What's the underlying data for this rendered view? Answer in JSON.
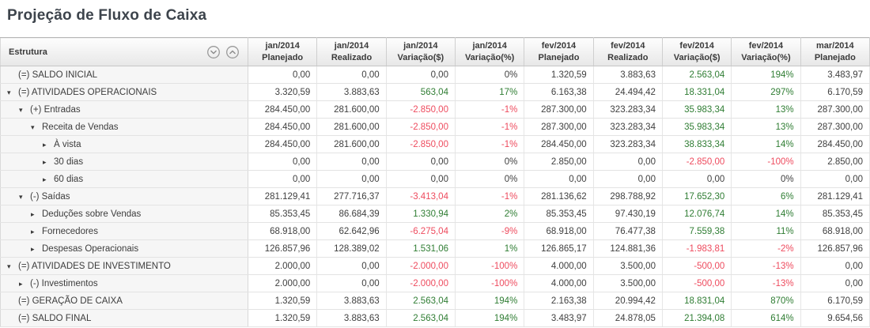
{
  "page": {
    "title": "Projeção de Fluxo de Caixa"
  },
  "colors": {
    "title": "#3d444c",
    "positive": "#2f7d33",
    "negative": "#ee4b5e",
    "neutral": "#3f3f3f",
    "structure_bg": "#f6f6f6",
    "header_gradient_top": "#fdfdfd",
    "header_gradient_bottom": "#e7e7e7"
  },
  "table": {
    "structure_header": "Estrutura",
    "header_icons": [
      {
        "name": "collapse-all-icon",
        "glyph": "chevron-down-circle"
      },
      {
        "name": "expand-all-icon",
        "glyph": "chevron-up-circle"
      }
    ],
    "columns": [
      {
        "period": "jan/2014",
        "metric": "Planejado"
      },
      {
        "period": "jan/2014",
        "metric": "Realizado"
      },
      {
        "period": "jan/2014",
        "metric": "Variação($)"
      },
      {
        "period": "jan/2014",
        "metric": "Variação(%)"
      },
      {
        "period": "fev/2014",
        "metric": "Planejado"
      },
      {
        "period": "fev/2014",
        "metric": "Realizado"
      },
      {
        "period": "fev/2014",
        "metric": "Variação($)"
      },
      {
        "period": "fev/2014",
        "metric": "Variação(%)"
      },
      {
        "period": "mar/2014",
        "metric": "Planejado"
      }
    ],
    "rows": [
      {
        "label": "(=) SALDO INICIAL",
        "indent": 0,
        "arrow": "none",
        "cells": [
          [
            "0,00",
            "k"
          ],
          [
            "0,00",
            "k"
          ],
          [
            "0,00",
            "k"
          ],
          [
            "0%",
            "k"
          ],
          [
            "1.320,59",
            "k"
          ],
          [
            "3.883,63",
            "k"
          ],
          [
            "2.563,04",
            "g"
          ],
          [
            "194%",
            "g"
          ],
          [
            "3.483,97",
            "k"
          ]
        ]
      },
      {
        "label": "(=) ATIVIDADES OPERACIONAIS",
        "indent": 0,
        "arrow": "down",
        "cells": [
          [
            "3.320,59",
            "k"
          ],
          [
            "3.883,63",
            "k"
          ],
          [
            "563,04",
            "g"
          ],
          [
            "17%",
            "g"
          ],
          [
            "6.163,38",
            "k"
          ],
          [
            "24.494,42",
            "k"
          ],
          [
            "18.331,04",
            "g"
          ],
          [
            "297%",
            "g"
          ],
          [
            "6.170,59",
            "k"
          ]
        ]
      },
      {
        "label": "(+) Entradas",
        "indent": 1,
        "arrow": "down",
        "cells": [
          [
            "284.450,00",
            "k"
          ],
          [
            "281.600,00",
            "k"
          ],
          [
            "-2.850,00",
            "r"
          ],
          [
            "-1%",
            "r"
          ],
          [
            "287.300,00",
            "k"
          ],
          [
            "323.283,34",
            "k"
          ],
          [
            "35.983,34",
            "g"
          ],
          [
            "13%",
            "g"
          ],
          [
            "287.300,00",
            "k"
          ]
        ]
      },
      {
        "label": "Receita de Vendas",
        "indent": 2,
        "arrow": "down",
        "cells": [
          [
            "284.450,00",
            "k"
          ],
          [
            "281.600,00",
            "k"
          ],
          [
            "-2.850,00",
            "r"
          ],
          [
            "-1%",
            "r"
          ],
          [
            "287.300,00",
            "k"
          ],
          [
            "323.283,34",
            "k"
          ],
          [
            "35.983,34",
            "g"
          ],
          [
            "13%",
            "g"
          ],
          [
            "287.300,00",
            "k"
          ]
        ]
      },
      {
        "label": "À vista",
        "indent": 3,
        "arrow": "right",
        "cells": [
          [
            "284.450,00",
            "k"
          ],
          [
            "281.600,00",
            "k"
          ],
          [
            "-2.850,00",
            "r"
          ],
          [
            "-1%",
            "r"
          ],
          [
            "284.450,00",
            "k"
          ],
          [
            "323.283,34",
            "k"
          ],
          [
            "38.833,34",
            "g"
          ],
          [
            "14%",
            "g"
          ],
          [
            "284.450,00",
            "k"
          ]
        ]
      },
      {
        "label": "30 dias",
        "indent": 3,
        "arrow": "right",
        "cells": [
          [
            "0,00",
            "k"
          ],
          [
            "0,00",
            "k"
          ],
          [
            "0,00",
            "k"
          ],
          [
            "0%",
            "k"
          ],
          [
            "2.850,00",
            "k"
          ],
          [
            "0,00",
            "k"
          ],
          [
            "-2.850,00",
            "r"
          ],
          [
            "-100%",
            "r"
          ],
          [
            "2.850,00",
            "k"
          ]
        ]
      },
      {
        "label": "60 dias",
        "indent": 3,
        "arrow": "right",
        "cells": [
          [
            "0,00",
            "k"
          ],
          [
            "0,00",
            "k"
          ],
          [
            "0,00",
            "k"
          ],
          [
            "0%",
            "k"
          ],
          [
            "0,00",
            "k"
          ],
          [
            "0,00",
            "k"
          ],
          [
            "0,00",
            "k"
          ],
          [
            "0%",
            "k"
          ],
          [
            "0,00",
            "k"
          ]
        ]
      },
      {
        "label": "(-) Saídas",
        "indent": 1,
        "arrow": "down",
        "cells": [
          [
            "281.129,41",
            "k"
          ],
          [
            "277.716,37",
            "k"
          ],
          [
            "-3.413,04",
            "r"
          ],
          [
            "-1%",
            "r"
          ],
          [
            "281.136,62",
            "k"
          ],
          [
            "298.788,92",
            "k"
          ],
          [
            "17.652,30",
            "g"
          ],
          [
            "6%",
            "g"
          ],
          [
            "281.129,41",
            "k"
          ]
        ]
      },
      {
        "label": "Deduções sobre Vendas",
        "indent": 2,
        "arrow": "right",
        "cells": [
          [
            "85.353,45",
            "k"
          ],
          [
            "86.684,39",
            "k"
          ],
          [
            "1.330,94",
            "g"
          ],
          [
            "2%",
            "g"
          ],
          [
            "85.353,45",
            "k"
          ],
          [
            "97.430,19",
            "k"
          ],
          [
            "12.076,74",
            "g"
          ],
          [
            "14%",
            "g"
          ],
          [
            "85.353,45",
            "k"
          ]
        ]
      },
      {
        "label": "Fornecedores",
        "indent": 2,
        "arrow": "right",
        "cells": [
          [
            "68.918,00",
            "k"
          ],
          [
            "62.642,96",
            "k"
          ],
          [
            "-6.275,04",
            "r"
          ],
          [
            "-9%",
            "r"
          ],
          [
            "68.918,00",
            "k"
          ],
          [
            "76.477,38",
            "k"
          ],
          [
            "7.559,38",
            "g"
          ],
          [
            "11%",
            "g"
          ],
          [
            "68.918,00",
            "k"
          ]
        ]
      },
      {
        "label": "Despesas Operacionais",
        "indent": 2,
        "arrow": "right",
        "cells": [
          [
            "126.857,96",
            "k"
          ],
          [
            "128.389,02",
            "k"
          ],
          [
            "1.531,06",
            "g"
          ],
          [
            "1%",
            "g"
          ],
          [
            "126.865,17",
            "k"
          ],
          [
            "124.881,36",
            "k"
          ],
          [
            "-1.983,81",
            "r"
          ],
          [
            "-2%",
            "r"
          ],
          [
            "126.857,96",
            "k"
          ]
        ]
      },
      {
        "label": "(=) ATIVIDADES DE INVESTIMENTO",
        "indent": 0,
        "arrow": "down",
        "cells": [
          [
            "2.000,00",
            "k"
          ],
          [
            "0,00",
            "k"
          ],
          [
            "-2.000,00",
            "r"
          ],
          [
            "-100%",
            "r"
          ],
          [
            "4.000,00",
            "k"
          ],
          [
            "3.500,00",
            "k"
          ],
          [
            "-500,00",
            "r"
          ],
          [
            "-13%",
            "r"
          ],
          [
            "0,00",
            "k"
          ]
        ]
      },
      {
        "label": "(-) Investimentos",
        "indent": 1,
        "arrow": "right",
        "cells": [
          [
            "2.000,00",
            "k"
          ],
          [
            "0,00",
            "k"
          ],
          [
            "-2.000,00",
            "r"
          ],
          [
            "-100%",
            "r"
          ],
          [
            "4.000,00",
            "k"
          ],
          [
            "3.500,00",
            "k"
          ],
          [
            "-500,00",
            "r"
          ],
          [
            "-13%",
            "r"
          ],
          [
            "0,00",
            "k"
          ]
        ]
      },
      {
        "label": "(=) GERAÇÃO DE CAIXA",
        "indent": 0,
        "arrow": "none",
        "cells": [
          [
            "1.320,59",
            "k"
          ],
          [
            "3.883,63",
            "k"
          ],
          [
            "2.563,04",
            "g"
          ],
          [
            "194%",
            "g"
          ],
          [
            "2.163,38",
            "k"
          ],
          [
            "20.994,42",
            "k"
          ],
          [
            "18.831,04",
            "g"
          ],
          [
            "870%",
            "g"
          ],
          [
            "6.170,59",
            "k"
          ]
        ]
      },
      {
        "label": "(=) SALDO FINAL",
        "indent": 0,
        "arrow": "none",
        "cells": [
          [
            "1.320,59",
            "k"
          ],
          [
            "3.883,63",
            "k"
          ],
          [
            "2.563,04",
            "g"
          ],
          [
            "194%",
            "g"
          ],
          [
            "3.483,97",
            "k"
          ],
          [
            "24.878,05",
            "k"
          ],
          [
            "21.394,08",
            "g"
          ],
          [
            "614%",
            "g"
          ],
          [
            "9.654,56",
            "k"
          ]
        ]
      }
    ]
  }
}
